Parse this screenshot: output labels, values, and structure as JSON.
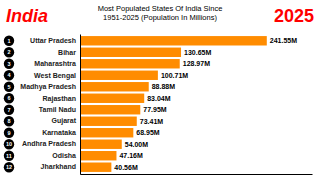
{
  "chart_data": {
    "type": "bar",
    "orientation": "horizontal",
    "title": "Most Populated States Of India Since\n1951-2025 (Population In Millions)",
    "annotations": [
      {
        "text": "India",
        "color": "#FF0000"
      },
      {
        "text": "2025",
        "color": "#FF0000"
      }
    ],
    "categories": [
      "Uttar Pradesh",
      "Bihar",
      "Maharashtra",
      "West Bengal",
      "Madhya Pradesh",
      "Rajasthan",
      "Tamil Nadu",
      "Gujarat",
      "Karnataka",
      "Andhra Pradesh",
      "Odisha",
      "Jharkhand"
    ],
    "ranks": [
      "1",
      "2",
      "3",
      "4",
      "5",
      "6",
      "7",
      "8",
      "9",
      "10",
      "11",
      "12"
    ],
    "values": [
      241.55,
      130.65,
      128.97,
      100.71,
      88.88,
      83.04,
      77.95,
      73.41,
      68.95,
      54.0,
      47.16,
      40.56
    ],
    "value_labels": [
      "241.55M",
      "130.65M",
      "128.97M",
      "100.71M",
      "88.88M",
      "83.04M",
      "77.95M",
      "73.41M",
      "68.95M",
      "54.00M",
      "47.16M",
      "40.56M"
    ],
    "color": "#FF8C00",
    "xlim": [
      0,
      300
    ],
    "data_labels": true,
    "tick_labels": "y",
    "grid": false
  }
}
